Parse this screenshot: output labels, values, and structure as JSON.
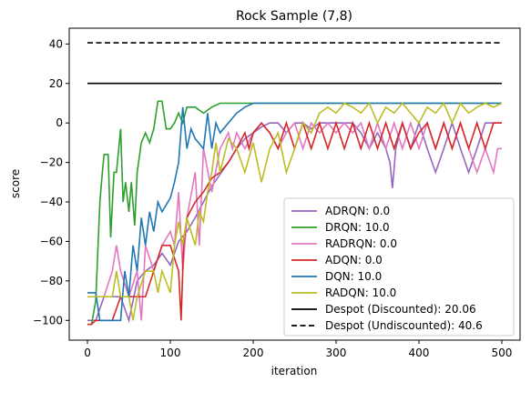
{
  "chart_data": {
    "type": "line",
    "title": "Rock Sample (7,8)",
    "xlabel": "iteration",
    "ylabel": "score",
    "xlim": [
      -22,
      522
    ],
    "ylim": [
      -110,
      48
    ],
    "xticks": [
      0,
      100,
      200,
      300,
      400,
      500
    ],
    "yticks": [
      -100,
      -80,
      -60,
      -40,
      -20,
      0,
      20,
      40
    ],
    "grid": false,
    "legend_position": "lower-right",
    "series": [
      {
        "name": "ADRQN: 0.0",
        "color": "#9467bd",
        "style": "solid",
        "points": [
          [
            0,
            -100
          ],
          [
            10,
            -100
          ],
          [
            20,
            -88
          ],
          [
            30,
            -88
          ],
          [
            40,
            -88
          ],
          [
            50,
            -100
          ],
          [
            60,
            -80
          ],
          [
            70,
            -75
          ],
          [
            80,
            -72
          ],
          [
            90,
            -66
          ],
          [
            100,
            -72
          ],
          [
            110,
            -60
          ],
          [
            120,
            -55
          ],
          [
            130,
            -48
          ],
          [
            140,
            -40
          ],
          [
            150,
            -32
          ],
          [
            160,
            -26
          ],
          [
            170,
            -20
          ],
          [
            180,
            -13
          ],
          [
            190,
            -8
          ],
          [
            200,
            -5
          ],
          [
            210,
            -2
          ],
          [
            220,
            0
          ],
          [
            230,
            0
          ],
          [
            240,
            -5
          ],
          [
            250,
            0
          ],
          [
            260,
            0
          ],
          [
            270,
            -3
          ],
          [
            280,
            0
          ],
          [
            290,
            0
          ],
          [
            300,
            0
          ],
          [
            310,
            0
          ],
          [
            320,
            0
          ],
          [
            330,
            -5
          ],
          [
            340,
            -13
          ],
          [
            350,
            -5
          ],
          [
            360,
            -13
          ],
          [
            365,
            -20
          ],
          [
            368,
            -33
          ],
          [
            372,
            -13
          ],
          [
            380,
            0
          ],
          [
            390,
            -13
          ],
          [
            400,
            0
          ],
          [
            410,
            -13
          ],
          [
            420,
            -25
          ],
          [
            430,
            -13
          ],
          [
            440,
            0
          ],
          [
            450,
            -13
          ],
          [
            460,
            -25
          ],
          [
            470,
            -13
          ],
          [
            480,
            0
          ],
          [
            490,
            0
          ],
          [
            500,
            0
          ]
        ]
      },
      {
        "name": "DRQN: 10.0",
        "color": "#2ca02c",
        "style": "solid",
        "points": [
          [
            0,
            -102
          ],
          [
            5,
            -102
          ],
          [
            10,
            -90
          ],
          [
            15,
            -40
          ],
          [
            18,
            -25
          ],
          [
            20,
            -16
          ],
          [
            25,
            -16
          ],
          [
            28,
            -58
          ],
          [
            32,
            -25
          ],
          [
            35,
            -25
          ],
          [
            40,
            -3
          ],
          [
            43,
            -40
          ],
          [
            46,
            -30
          ],
          [
            50,
            -45
          ],
          [
            53,
            -30
          ],
          [
            57,
            -52
          ],
          [
            60,
            -25
          ],
          [
            65,
            -10
          ],
          [
            70,
            -5
          ],
          [
            75,
            -10
          ],
          [
            80,
            -3
          ],
          [
            85,
            11
          ],
          [
            90,
            11
          ],
          [
            95,
            -3
          ],
          [
            100,
            -3
          ],
          [
            105,
            0
          ],
          [
            110,
            5
          ],
          [
            115,
            0
          ],
          [
            120,
            8
          ],
          [
            130,
            8
          ],
          [
            140,
            5
          ],
          [
            150,
            8
          ],
          [
            160,
            10
          ],
          [
            200,
            10
          ],
          [
            250,
            10
          ],
          [
            300,
            10
          ],
          [
            350,
            10
          ],
          [
            400,
            10
          ],
          [
            450,
            10
          ],
          [
            500,
            10
          ]
        ]
      },
      {
        "name": "RADRQN: 0.0",
        "color": "#e377c2",
        "style": "solid",
        "points": [
          [
            0,
            -88
          ],
          [
            10,
            -88
          ],
          [
            20,
            -88
          ],
          [
            30,
            -75
          ],
          [
            35,
            -62
          ],
          [
            40,
            -75
          ],
          [
            50,
            -88
          ],
          [
            60,
            -75
          ],
          [
            65,
            -100
          ],
          [
            70,
            -62
          ],
          [
            80,
            -75
          ],
          [
            90,
            -62
          ],
          [
            100,
            -55
          ],
          [
            105,
            -62
          ],
          [
            110,
            -35
          ],
          [
            115,
            -75
          ],
          [
            120,
            -48
          ],
          [
            130,
            -25
          ],
          [
            135,
            -62
          ],
          [
            140,
            -13
          ],
          [
            150,
            -35
          ],
          [
            160,
            -13
          ],
          [
            170,
            -5
          ],
          [
            175,
            -13
          ],
          [
            180,
            -5
          ],
          [
            190,
            -13
          ],
          [
            200,
            -5
          ],
          [
            210,
            0
          ],
          [
            220,
            -5
          ],
          [
            230,
            -13
          ],
          [
            240,
            -5
          ],
          [
            250,
            0
          ],
          [
            260,
            -13
          ],
          [
            270,
            0
          ],
          [
            280,
            -5
          ],
          [
            290,
            0
          ],
          [
            300,
            -5
          ],
          [
            310,
            0
          ],
          [
            320,
            -5
          ],
          [
            330,
            0
          ],
          [
            340,
            -13
          ],
          [
            350,
            0
          ],
          [
            360,
            -13
          ],
          [
            370,
            0
          ],
          [
            380,
            -13
          ],
          [
            390,
            0
          ],
          [
            400,
            -13
          ],
          [
            410,
            0
          ],
          [
            420,
            -13
          ],
          [
            430,
            0
          ],
          [
            440,
            -13
          ],
          [
            450,
            0
          ],
          [
            460,
            -13
          ],
          [
            470,
            -25
          ],
          [
            480,
            -13
          ],
          [
            490,
            -25
          ],
          [
            495,
            -13
          ],
          [
            500,
            -13
          ]
        ]
      },
      {
        "name": "ADQN: 0.0",
        "color": "#d62728",
        "style": "solid",
        "points": [
          [
            0,
            -102
          ],
          [
            5,
            -102
          ],
          [
            10,
            -100
          ],
          [
            20,
            -100
          ],
          [
            30,
            -100
          ],
          [
            40,
            -88
          ],
          [
            50,
            -88
          ],
          [
            60,
            -88
          ],
          [
            70,
            -88
          ],
          [
            80,
            -75
          ],
          [
            90,
            -62
          ],
          [
            100,
            -62
          ],
          [
            110,
            -75
          ],
          [
            113,
            -100
          ],
          [
            116,
            -62
          ],
          [
            120,
            -48
          ],
          [
            130,
            -40
          ],
          [
            140,
            -35
          ],
          [
            150,
            -28
          ],
          [
            160,
            -25
          ],
          [
            170,
            -20
          ],
          [
            180,
            -13
          ],
          [
            190,
            -5
          ],
          [
            195,
            -13
          ],
          [
            200,
            -5
          ],
          [
            210,
            0
          ],
          [
            220,
            -5
          ],
          [
            230,
            -13
          ],
          [
            240,
            0
          ],
          [
            250,
            -13
          ],
          [
            260,
            0
          ],
          [
            270,
            -13
          ],
          [
            280,
            0
          ],
          [
            290,
            -13
          ],
          [
            300,
            0
          ],
          [
            310,
            -13
          ],
          [
            320,
            0
          ],
          [
            330,
            -13
          ],
          [
            340,
            0
          ],
          [
            350,
            -13
          ],
          [
            360,
            0
          ],
          [
            370,
            -13
          ],
          [
            380,
            0
          ],
          [
            390,
            -13
          ],
          [
            400,
            -5
          ],
          [
            410,
            0
          ],
          [
            420,
            -13
          ],
          [
            430,
            0
          ],
          [
            440,
            -13
          ],
          [
            450,
            0
          ],
          [
            460,
            -13
          ],
          [
            470,
            0
          ],
          [
            480,
            -13
          ],
          [
            490,
            0
          ],
          [
            500,
            0
          ]
        ]
      },
      {
        "name": "DQN: 10.0",
        "color": "#1f77b4",
        "style": "solid",
        "points": [
          [
            0,
            -86
          ],
          [
            5,
            -86
          ],
          [
            10,
            -86
          ],
          [
            15,
            -100
          ],
          [
            20,
            -100
          ],
          [
            30,
            -100
          ],
          [
            40,
            -100
          ],
          [
            45,
            -75
          ],
          [
            50,
            -88
          ],
          [
            55,
            -62
          ],
          [
            60,
            -75
          ],
          [
            65,
            -48
          ],
          [
            70,
            -62
          ],
          [
            75,
            -45
          ],
          [
            80,
            -55
          ],
          [
            85,
            -40
          ],
          [
            90,
            -45
          ],
          [
            100,
            -38
          ],
          [
            105,
            -30
          ],
          [
            110,
            -20
          ],
          [
            115,
            8
          ],
          [
            120,
            -13
          ],
          [
            125,
            -3
          ],
          [
            130,
            -8
          ],
          [
            140,
            -13
          ],
          [
            145,
            5
          ],
          [
            150,
            -13
          ],
          [
            155,
            0
          ],
          [
            160,
            -5
          ],
          [
            170,
            0
          ],
          [
            180,
            5
          ],
          [
            190,
            8
          ],
          [
            200,
            10
          ],
          [
            220,
            10
          ],
          [
            250,
            10
          ],
          [
            300,
            10
          ],
          [
            350,
            10
          ],
          [
            400,
            10
          ],
          [
            450,
            10
          ],
          [
            500,
            10
          ]
        ]
      },
      {
        "name": "RADQN: 10.0",
        "color": "#bcbd22",
        "style": "solid",
        "points": [
          [
            0,
            -88
          ],
          [
            10,
            -88
          ],
          [
            20,
            -88
          ],
          [
            30,
            -88
          ],
          [
            35,
            -75
          ],
          [
            40,
            -88
          ],
          [
            50,
            -88
          ],
          [
            55,
            -100
          ],
          [
            60,
            -88
          ],
          [
            70,
            -75
          ],
          [
            80,
            -75
          ],
          [
            85,
            -86
          ],
          [
            90,
            -75
          ],
          [
            100,
            -86
          ],
          [
            105,
            -62
          ],
          [
            110,
            -50
          ],
          [
            115,
            -62
          ],
          [
            120,
            -48
          ],
          [
            125,
            -55
          ],
          [
            130,
            -62
          ],
          [
            135,
            -45
          ],
          [
            140,
            -50
          ],
          [
            145,
            -35
          ],
          [
            150,
            -25
          ],
          [
            155,
            -10
          ],
          [
            160,
            -25
          ],
          [
            170,
            -8
          ],
          [
            180,
            -13
          ],
          [
            190,
            -25
          ],
          [
            200,
            -10
          ],
          [
            210,
            -30
          ],
          [
            220,
            -13
          ],
          [
            230,
            -5
          ],
          [
            240,
            -25
          ],
          [
            250,
            -13
          ],
          [
            260,
            0
          ],
          [
            270,
            -5
          ],
          [
            280,
            5
          ],
          [
            290,
            8
          ],
          [
            300,
            5
          ],
          [
            310,
            10
          ],
          [
            320,
            8
          ],
          [
            330,
            5
          ],
          [
            340,
            10
          ],
          [
            350,
            0
          ],
          [
            360,
            8
          ],
          [
            370,
            5
          ],
          [
            380,
            10
          ],
          [
            390,
            5
          ],
          [
            400,
            0
          ],
          [
            410,
            8
          ],
          [
            420,
            5
          ],
          [
            430,
            10
          ],
          [
            440,
            0
          ],
          [
            450,
            10
          ],
          [
            460,
            5
          ],
          [
            470,
            8
          ],
          [
            480,
            10
          ],
          [
            490,
            8
          ],
          [
            500,
            10
          ]
        ]
      },
      {
        "name": "Despot (Discounted): 20.06",
        "color": "#000000",
        "style": "solid",
        "points": [
          [
            0,
            20.06
          ],
          [
            500,
            20.06
          ]
        ]
      },
      {
        "name": "Despot (Undiscounted): 40.6",
        "color": "#000000",
        "style": "dashed",
        "points": [
          [
            0,
            40.6
          ],
          [
            500,
            40.6
          ]
        ]
      }
    ]
  }
}
